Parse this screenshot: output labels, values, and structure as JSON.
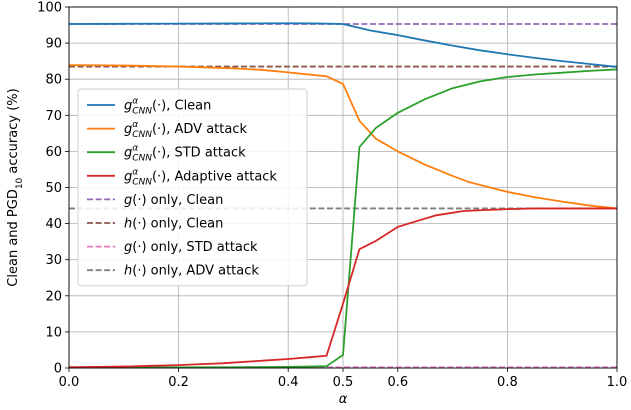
{
  "chart_data": {
    "type": "line",
    "xlabel": "α",
    "ylabel_parts": [
      "Clean and PGD",
      "10",
      " accuracy (%)"
    ],
    "xlim": [
      0.0,
      1.0
    ],
    "ylim": [
      0,
      100
    ],
    "xticks": [
      0.0,
      0.2,
      0.4,
      0.5,
      0.6,
      0.8,
      1.0
    ],
    "xtick_labels": [
      "0.0",
      "0.2",
      "0.4",
      "0.5",
      "0.6",
      "0.8",
      "1.0"
    ],
    "yticks": [
      0,
      10,
      20,
      30,
      40,
      50,
      60,
      70,
      80,
      90,
      100
    ],
    "ytick_labels": [
      "0",
      "10",
      "20",
      "30",
      "40",
      "50",
      "60",
      "70",
      "80",
      "90",
      "100"
    ],
    "grid": true,
    "legend_position": "center-left",
    "series": [
      {
        "name_parts": [
          "g",
          "α",
          "CNN",
          "(·), Clean"
        ],
        "color": "#1f77b4",
        "dash": "solid",
        "points": [
          [
            0.0,
            95.3
          ],
          [
            0.1,
            95.35
          ],
          [
            0.2,
            95.4
          ],
          [
            0.3,
            95.45
          ],
          [
            0.4,
            95.5
          ],
          [
            0.45,
            95.45
          ],
          [
            0.5,
            95.3
          ],
          [
            0.55,
            93.5
          ],
          [
            0.6,
            92.2
          ],
          [
            0.65,
            90.7
          ],
          [
            0.7,
            89.3
          ],
          [
            0.75,
            88.0
          ],
          [
            0.8,
            86.9
          ],
          [
            0.85,
            85.9
          ],
          [
            0.9,
            85.0
          ],
          [
            0.95,
            84.2
          ],
          [
            1.0,
            83.4
          ]
        ]
      },
      {
        "name_parts": [
          "g",
          "α",
          "CNN",
          "(·), ADV attack"
        ],
        "color": "#ff7f0e",
        "dash": "solid",
        "points": [
          [
            0.0,
            83.9
          ],
          [
            0.1,
            83.8
          ],
          [
            0.2,
            83.5
          ],
          [
            0.3,
            83.0
          ],
          [
            0.35,
            82.6
          ],
          [
            0.4,
            81.9
          ],
          [
            0.47,
            80.8
          ],
          [
            0.5,
            78.7
          ],
          [
            0.53,
            68.5
          ],
          [
            0.56,
            63.5
          ],
          [
            0.6,
            60.0
          ],
          [
            0.65,
            56.3
          ],
          [
            0.7,
            53.2
          ],
          [
            0.73,
            51.5
          ],
          [
            0.8,
            48.8
          ],
          [
            0.85,
            47.3
          ],
          [
            0.9,
            46.1
          ],
          [
            0.95,
            45.0
          ],
          [
            1.0,
            44.2
          ]
        ]
      },
      {
        "name_parts": [
          "g",
          "α",
          "CNN",
          "(·), STD attack"
        ],
        "color": "#2ca02c",
        "dash": "solid",
        "points": [
          [
            0.0,
            0.1
          ],
          [
            0.1,
            0.1
          ],
          [
            0.2,
            0.15
          ],
          [
            0.3,
            0.2
          ],
          [
            0.4,
            0.3
          ],
          [
            0.47,
            0.5
          ],
          [
            0.5,
            3.6
          ],
          [
            0.53,
            61.2
          ],
          [
            0.56,
            66.5
          ],
          [
            0.6,
            70.7
          ],
          [
            0.65,
            74.5
          ],
          [
            0.7,
            77.5
          ],
          [
            0.75,
            79.4
          ],
          [
            0.8,
            80.6
          ],
          [
            0.85,
            81.3
          ],
          [
            0.9,
            81.8
          ],
          [
            0.95,
            82.3
          ],
          [
            1.0,
            82.7
          ]
        ]
      },
      {
        "name_parts": [
          "g",
          "α",
          "CNN",
          "(·), Adaptive attack"
        ],
        "color": "#d62728",
        "dash": "solid",
        "points": [
          [
            0.0,
            0.2
          ],
          [
            0.05,
            0.3
          ],
          [
            0.1,
            0.4
          ],
          [
            0.15,
            0.6
          ],
          [
            0.2,
            0.8
          ],
          [
            0.23,
            1.0
          ],
          [
            0.28,
            1.3
          ],
          [
            0.3,
            1.5
          ],
          [
            0.33,
            1.8
          ],
          [
            0.36,
            2.1
          ],
          [
            0.4,
            2.5
          ],
          [
            0.44,
            3.0
          ],
          [
            0.47,
            3.4
          ],
          [
            0.5,
            17.8
          ],
          [
            0.53,
            32.9
          ],
          [
            0.56,
            35.2
          ],
          [
            0.6,
            39.1
          ],
          [
            0.65,
            41.4
          ],
          [
            0.67,
            42.3
          ],
          [
            0.72,
            43.5
          ],
          [
            0.75,
            43.7
          ],
          [
            0.8,
            44.0
          ],
          [
            0.85,
            44.2
          ],
          [
            0.9,
            44.2
          ],
          [
            0.95,
            44.2
          ],
          [
            1.0,
            44.2
          ]
        ]
      },
      {
        "name_parts": [
          "g",
          "",
          "",
          "(·) only, Clean"
        ],
        "color": "#9467bd",
        "dash": "dashed",
        "points": [
          [
            0.0,
            95.3
          ],
          [
            1.0,
            95.3
          ]
        ]
      },
      {
        "name_parts": [
          "h",
          "",
          "",
          "(·) only, Clean"
        ],
        "color": "#8c564b",
        "dash": "dashed",
        "points": [
          [
            0.0,
            83.5
          ],
          [
            1.0,
            83.5
          ]
        ]
      },
      {
        "name_parts": [
          "g",
          "",
          "",
          "(·) only, STD attack"
        ],
        "color": "#e377c2",
        "dash": "dashed",
        "points": [
          [
            0.0,
            0.2
          ],
          [
            1.0,
            0.2
          ]
        ]
      },
      {
        "name_parts": [
          "h",
          "",
          "",
          "(·) only, ADV attack"
        ],
        "color": "#7f7f7f",
        "dash": "dashed",
        "points": [
          [
            0.0,
            44.2
          ],
          [
            1.0,
            44.2
          ]
        ]
      }
    ]
  }
}
